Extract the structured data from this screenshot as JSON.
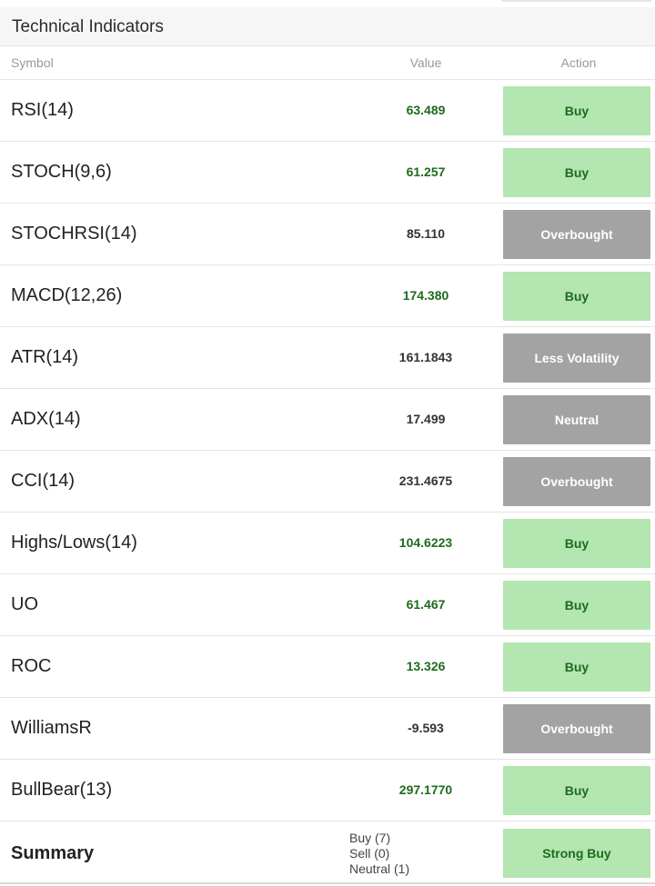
{
  "header": {
    "title": "Technical Indicators"
  },
  "columns": {
    "symbol": "Symbol",
    "value": "Value",
    "action": "Action"
  },
  "rows": [
    {
      "symbol": "RSI(14)",
      "value": "63.489",
      "action": "Buy",
      "tone": "buy"
    },
    {
      "symbol": "STOCH(9,6)",
      "value": "61.257",
      "action": "Buy",
      "tone": "buy"
    },
    {
      "symbol": "STOCHRSI(14)",
      "value": "85.110",
      "action": "Overbought",
      "tone": "gray"
    },
    {
      "symbol": "MACD(12,26)",
      "value": "174.380",
      "action": "Buy",
      "tone": "buy"
    },
    {
      "symbol": "ATR(14)",
      "value": "161.1843",
      "action": "Less Volatility",
      "tone": "gray"
    },
    {
      "symbol": "ADX(14)",
      "value": "17.499",
      "action": "Neutral",
      "tone": "gray"
    },
    {
      "symbol": "CCI(14)",
      "value": "231.4675",
      "action": "Overbought",
      "tone": "gray"
    },
    {
      "symbol": "Highs/Lows(14)",
      "value": "104.6223",
      "action": "Buy",
      "tone": "buy"
    },
    {
      "symbol": "UO",
      "value": "61.467",
      "action": "Buy",
      "tone": "buy"
    },
    {
      "symbol": "ROC",
      "value": "13.326",
      "action": "Buy",
      "tone": "buy"
    },
    {
      "symbol": "WilliamsR",
      "value": "-9.593",
      "action": "Overbought",
      "tone": "gray"
    },
    {
      "symbol": "BullBear(13)",
      "value": "297.1770",
      "action": "Buy",
      "tone": "buy"
    }
  ],
  "summary": {
    "label": "Summary",
    "buy": "Buy (7)",
    "sell": "Sell (0)",
    "neutral": "Neutral (1)",
    "action": "Strong Buy"
  },
  "colors": {
    "buy_bg": "#b3e6b0",
    "buy_text": "#1e6b1e",
    "neutral_bg": "#a3a3a3",
    "neutral_text": "#ffffff"
  }
}
